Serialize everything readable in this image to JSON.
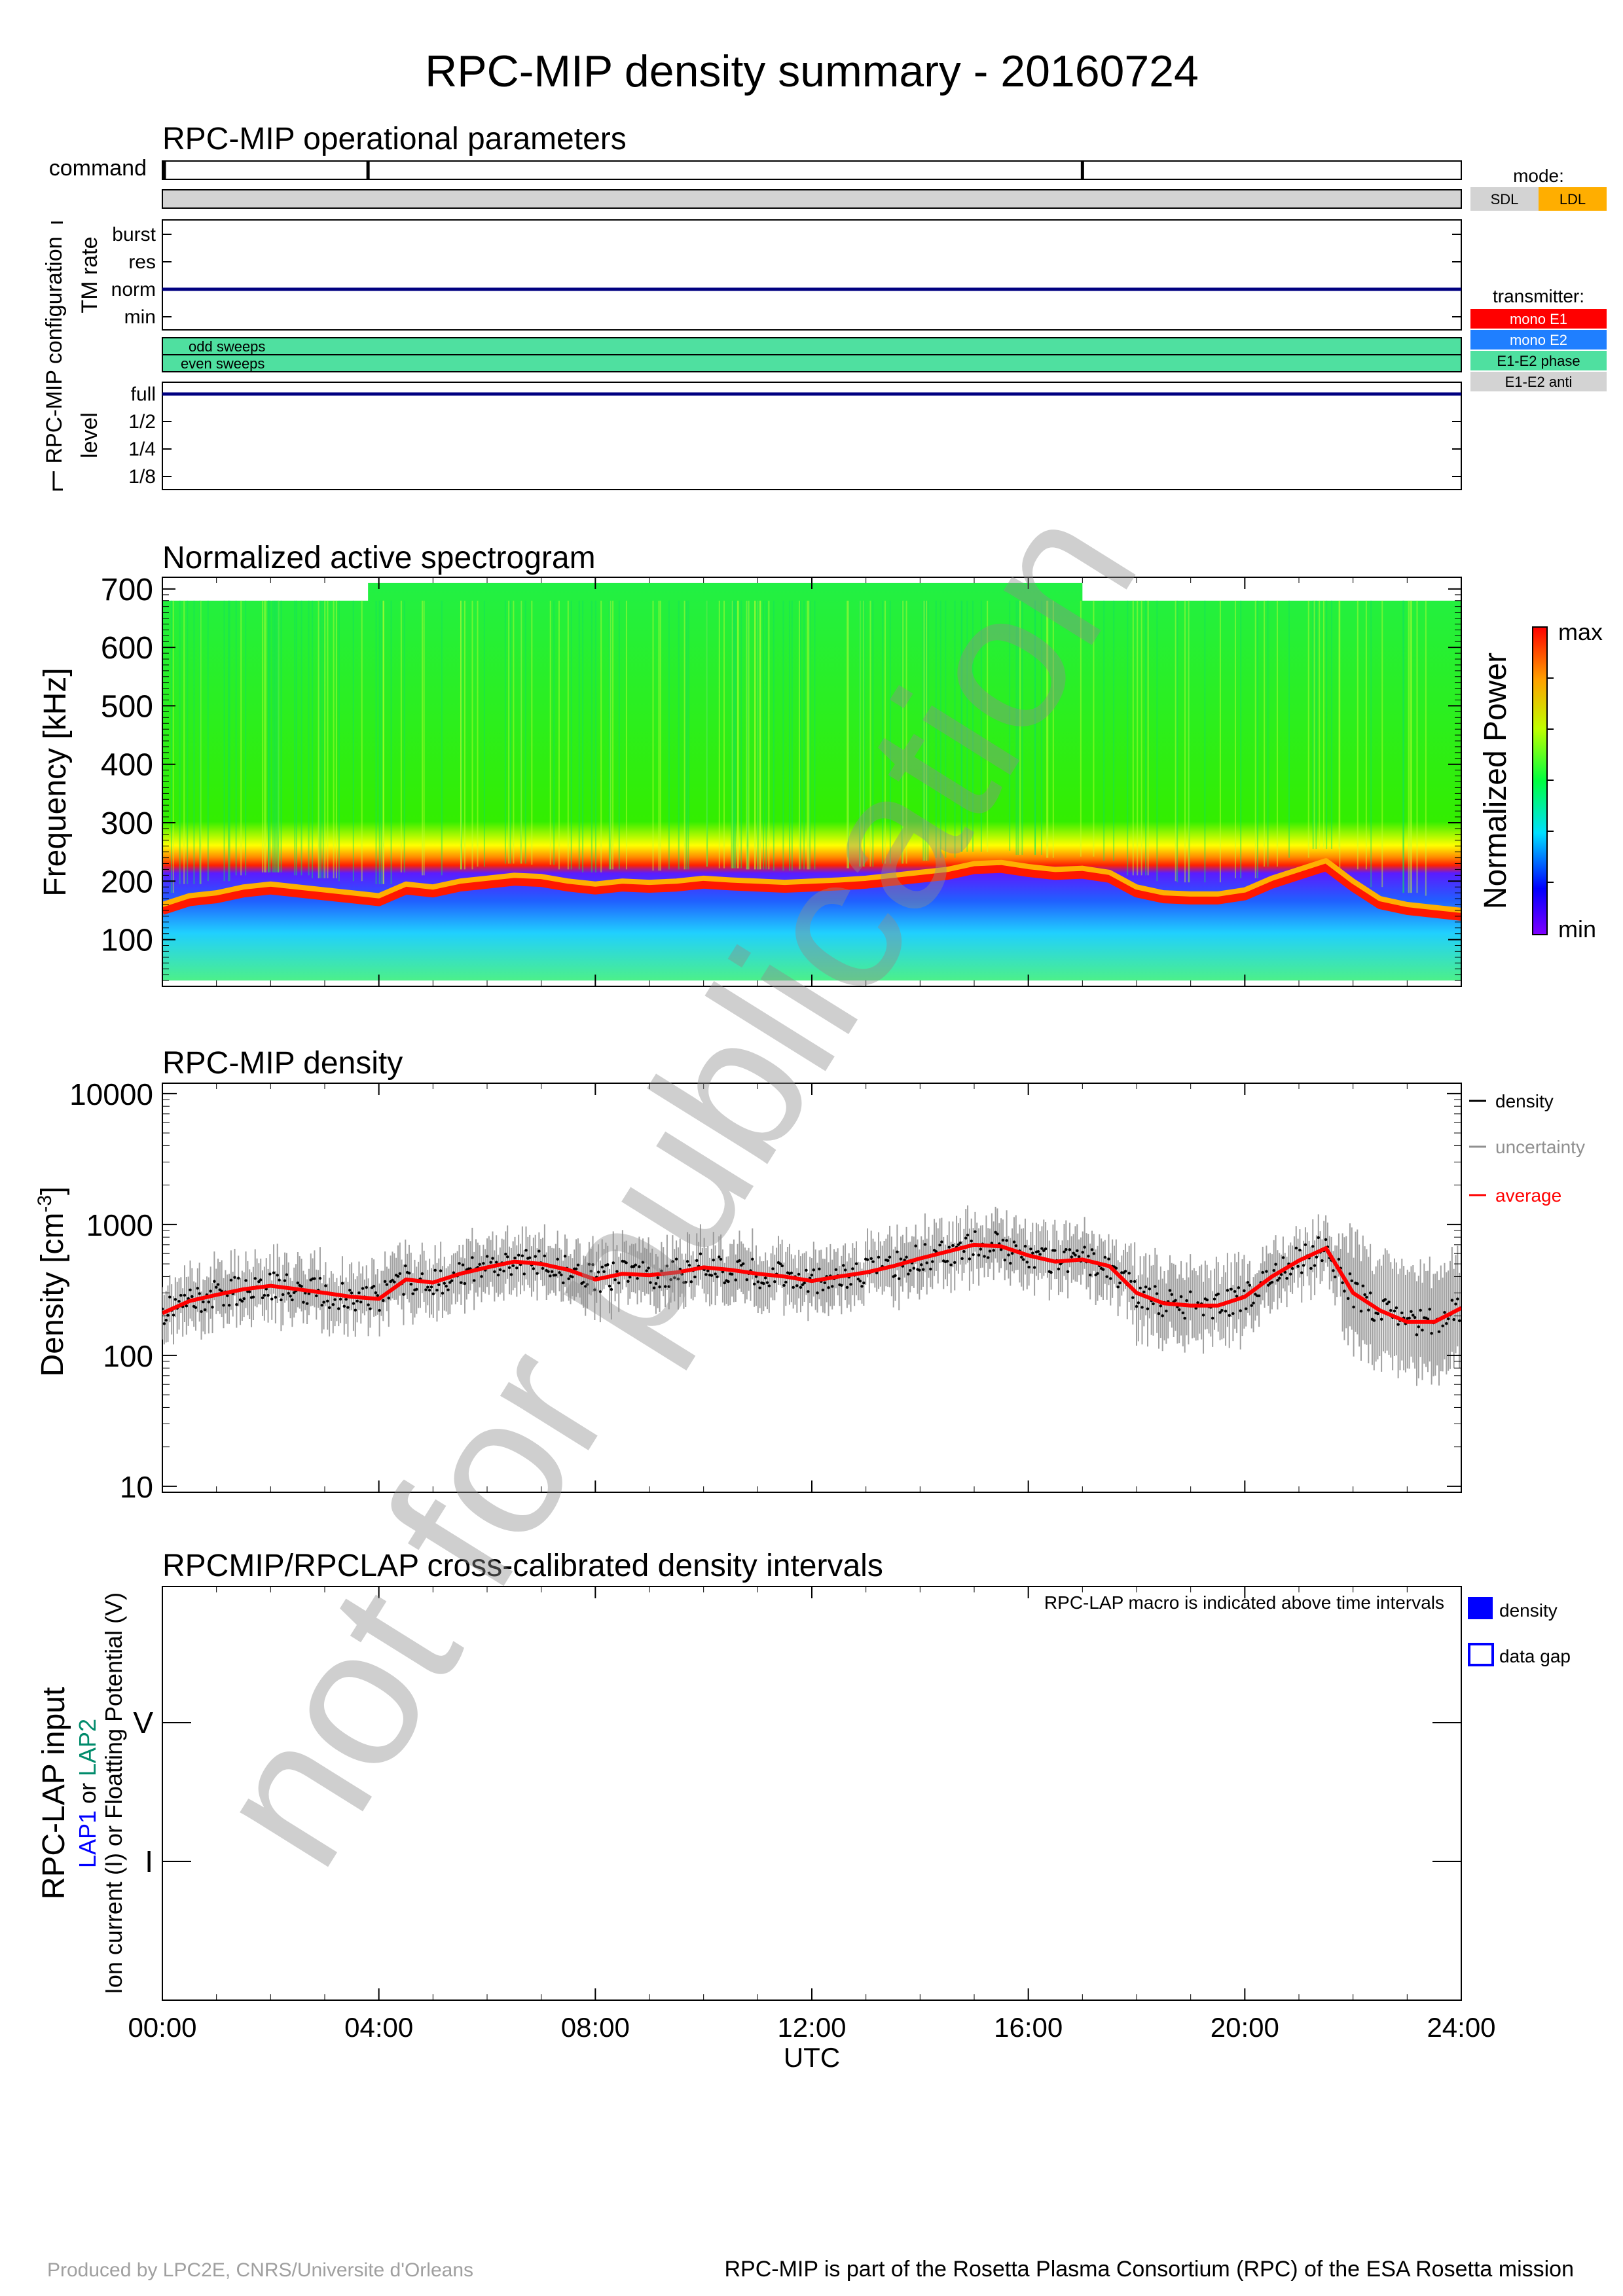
{
  "title": "RPC-MIP density summary - 20160724",
  "watermark": "not for publication",
  "footer_left": "Produced by LPC2E, CNRS/Universite d'Orleans",
  "footer_right": "RPC-MIP is part of the Rosetta Plasma Consortium (RPC) of the ESA Rosetta mission",
  "time_axis": {
    "label": "UTC",
    "ticks": [
      "00:00",
      "04:00",
      "08:00",
      "12:00",
      "16:00",
      "20:00",
      "24:00"
    ],
    "range_hours": [
      0,
      24
    ]
  },
  "ops_panel": {
    "title": "RPC-MIP operational parameters",
    "command_label": "command",
    "command_marks_hours": [
      0.0,
      3.8,
      17.0
    ],
    "config_label": "RPC-MIP configuration",
    "tm_rate_label": "TM rate",
    "tm_rate_levels": [
      "burst",
      "res",
      "norm",
      "min"
    ],
    "tm_rate_value": "norm",
    "odd_sweeps_label": "odd sweeps",
    "even_sweeps_label": "even sweeps",
    "level_label": "level",
    "level_levels": [
      "full",
      "1/2",
      "1/4",
      "1/8"
    ],
    "level_value": "full",
    "mode_legend": {
      "title": "mode:",
      "items": [
        {
          "label": "SDL",
          "color": "#d3d3d3"
        },
        {
          "label": "LDL",
          "color": "#ffae00"
        }
      ]
    },
    "transmitter_legend": {
      "title": "transmitter:",
      "items": [
        {
          "label": "mono E1",
          "color": "#ff0000"
        },
        {
          "label": "mono E2",
          "color": "#1f7fff"
        },
        {
          "label": "E1-E2 phase",
          "color": "#4fe0a0"
        },
        {
          "label": "E1-E2 anti",
          "color": "#d3d3d3"
        }
      ]
    },
    "mode_color": "#d3d3d3",
    "sweep_color": "#4fe0a0",
    "line_color": "#000080"
  },
  "chart_data": [
    {
      "type": "heatmap",
      "title": "Normalized active spectrogram",
      "ylabel": "Frequency [kHz]",
      "xlabel": "UTC",
      "ylim": [
        20,
        720
      ],
      "yticks": [
        100,
        200,
        300,
        400,
        500,
        600,
        700
      ],
      "colorbar_label": "Normalized Power",
      "colorbar_max": "max",
      "colorbar_min": "min",
      "top_freq_khz": [
        {
          "x_range": [
            0,
            3.8
          ],
          "value": 680
        },
        {
          "x_range": [
            3.8,
            17.0
          ],
          "value": 710
        },
        {
          "x_range": [
            17.0,
            24
          ],
          "value": 680
        }
      ],
      "plasma_line_khz": {
        "x": [
          0,
          0.5,
          1,
          1.5,
          2,
          2.5,
          3,
          3.5,
          4,
          4.5,
          5,
          5.5,
          6,
          6.5,
          7,
          7.5,
          8,
          8.5,
          9,
          9.5,
          10,
          10.5,
          11,
          11.5,
          12,
          12.5,
          13,
          13.5,
          14,
          14.5,
          15,
          15.5,
          16,
          16.5,
          17,
          17.5,
          18,
          18.5,
          19,
          19.5,
          20,
          20.5,
          21,
          21.5,
          22,
          22.5,
          23,
          23.5,
          24
        ],
        "y": [
          150,
          165,
          170,
          180,
          185,
          180,
          175,
          170,
          165,
          185,
          180,
          190,
          195,
          200,
          198,
          190,
          185,
          190,
          188,
          190,
          195,
          192,
          190,
          188,
          190,
          192,
          195,
          200,
          205,
          210,
          220,
          222,
          215,
          210,
          212,
          205,
          180,
          170,
          168,
          168,
          175,
          195,
          210,
          225,
          190,
          160,
          150,
          145,
          140
        ]
      }
    },
    {
      "type": "line",
      "title": "RPC-MIP density",
      "ylabel": "Density [cm",
      "ylabel_sup": "-3",
      "ylabel_end": "]",
      "xlabel": "UTC",
      "yscale": "log",
      "ylim": [
        9,
        12000
      ],
      "yticks": [
        10,
        100,
        1000,
        10000
      ],
      "legend": [
        {
          "name": "density",
          "color": "#000000"
        },
        {
          "name": "uncertainty",
          "color": "#909090"
        },
        {
          "name": "average",
          "color": "#ff0000"
        }
      ],
      "series": [
        {
          "name": "average",
          "x": [
            0,
            0.5,
            1,
            1.5,
            2,
            2.5,
            3,
            3.5,
            4,
            4.5,
            5,
            5.5,
            6,
            6.5,
            7,
            7.5,
            8,
            8.5,
            9,
            9.5,
            10,
            10.5,
            11,
            11.5,
            12,
            12.5,
            13,
            13.5,
            14,
            14.5,
            15,
            15.5,
            16,
            16.5,
            17,
            17.5,
            18,
            18.5,
            19,
            19.5,
            20,
            20.5,
            21,
            21.5,
            22,
            22.5,
            23,
            23.5,
            24
          ],
          "y": [
            210,
            260,
            290,
            320,
            340,
            320,
            300,
            280,
            270,
            380,
            360,
            420,
            470,
            520,
            500,
            450,
            380,
            420,
            410,
            430,
            470,
            450,
            420,
            400,
            370,
            400,
            430,
            480,
            550,
            620,
            700,
            680,
            580,
            520,
            540,
            480,
            300,
            250,
            240,
            240,
            280,
            400,
            530,
            660,
            300,
            220,
            180,
            180,
            230
          ]
        }
      ]
    }
  ],
  "lap_panel": {
    "title": "RPCMIP/RPCLAP cross-calibrated density intervals",
    "macro_note": "RPC-LAP macro is indicated above time intervals",
    "ylabel_main": "RPC-LAP input",
    "ylabel_lap1": "LAP1",
    "ylabel_or": " or ",
    "ylabel_lap2": "LAP2",
    "ylabel_sub": "Ion current (I) or Floatting Potential (V)",
    "levels": [
      "V",
      "I"
    ],
    "lap1_color": "#0000ff",
    "lap2_color": "#008b6b",
    "legend": [
      {
        "name": "density",
        "style": "filled",
        "color": "#0000ff"
      },
      {
        "name": "data gap",
        "style": "outline",
        "color": "#0000ff"
      }
    ]
  }
}
